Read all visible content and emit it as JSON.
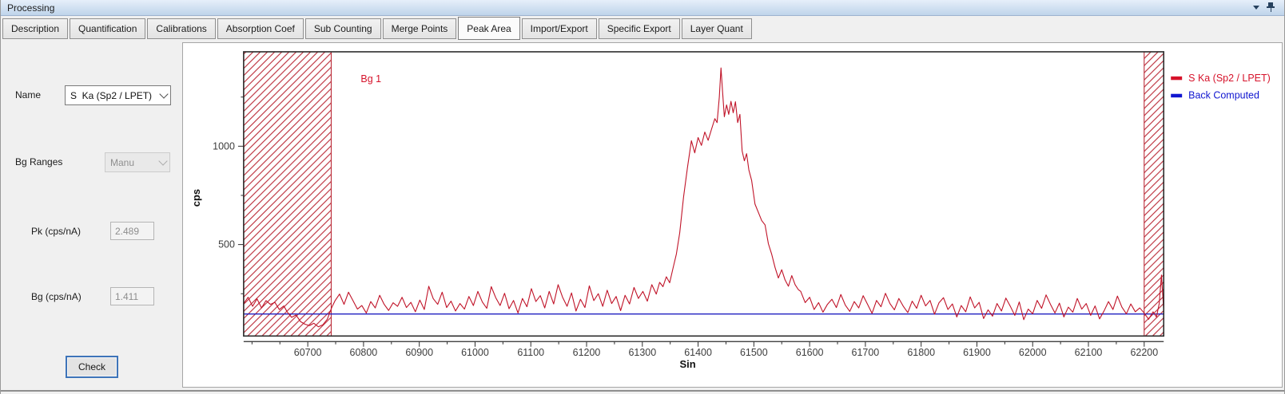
{
  "window": {
    "title": "Processing"
  },
  "titlebar_icons": {
    "menu": "chevron-down",
    "pin": "pushpin"
  },
  "tabs": {
    "items": [
      "Description",
      "Quantification",
      "Calibrations",
      "Absorption Coef",
      "Sub Counting",
      "Merge Points",
      "Peak Area",
      "Import/Export",
      "Specific Export",
      "Layer Quant"
    ],
    "active": "Peak Area"
  },
  "panel": {
    "name_label": "Name",
    "name_value": "S  Ka (Sp2 / LPET)",
    "bg_ranges_label": "Bg Ranges",
    "bg_ranges_value": "Manu",
    "pk_label": "Pk (cps/nA)",
    "pk_value": "2.489",
    "bg_label": "Bg (cps/nA)",
    "bg_value": "1.411",
    "check_label": "Check"
  },
  "colors": {
    "curve_red": "#c01328",
    "hatch_red": "#b51a28",
    "legend_red": "#d6122a",
    "curve_blue": "#2020c0",
    "legend_blue": "#1016d0",
    "axis": "#2c2c2c",
    "tick_text": "#3d3d3d"
  },
  "chart_data": {
    "type": "line",
    "title": "",
    "xlabel": "Sin",
    "ylabel": "cps",
    "xlim": [
      60585,
      62235
    ],
    "ylim": [
      35,
      1480
    ],
    "grid": false,
    "legend_position": "top-right-outside",
    "x_major_ticks": [
      60700,
      60800,
      60900,
      61000,
      61100,
      61200,
      61300,
      61400,
      61500,
      61600,
      61700,
      61800,
      61900,
      62000,
      62100,
      62200
    ],
    "x_minor_step": 50,
    "y_major_ticks": [
      500,
      1000
    ],
    "y_minor_ticks": [
      250,
      750,
      1250
    ],
    "annotations": [
      {
        "text": "Bg 1",
        "x": 60795,
        "y": 1325
      }
    ],
    "bg_regions": [
      {
        "name": "background-range-left",
        "x0": 60585,
        "x1": 60742
      },
      {
        "name": "background-range-right",
        "x0": 62200,
        "x1": 62235
      }
    ],
    "legend": [
      {
        "label": "S  Ka (Sp2 / LPET)",
        "color": "#d6122a"
      },
      {
        "label": "Back Computed",
        "color": "#1016d0"
      }
    ],
    "series": [
      {
        "name": "S  Ka (Sp2 / LPET)",
        "color": "#c01328",
        "points": [
          [
            60585,
            200
          ],
          [
            60593,
            232
          ],
          [
            60601,
            186
          ],
          [
            60609,
            224
          ],
          [
            60617,
            178
          ],
          [
            60625,
            215
          ],
          [
            60633,
            196
          ],
          [
            60641,
            206
          ],
          [
            60649,
            170
          ],
          [
            60657,
            188
          ],
          [
            60663,
            158
          ],
          [
            60671,
            130
          ],
          [
            60679,
            142
          ],
          [
            60687,
            108
          ],
          [
            60695,
            95
          ],
          [
            60703,
            88
          ],
          [
            60711,
            100
          ],
          [
            60719,
            82
          ],
          [
            60727,
            92
          ],
          [
            60735,
            120
          ],
          [
            60743,
            180
          ],
          [
            60749,
            215
          ],
          [
            60757,
            248
          ],
          [
            60765,
            196
          ],
          [
            60773,
            258
          ],
          [
            60781,
            215
          ],
          [
            60789,
            172
          ],
          [
            60797,
            190
          ],
          [
            60805,
            152
          ],
          [
            60813,
            210
          ],
          [
            60821,
            178
          ],
          [
            60829,
            242
          ],
          [
            60837,
            196
          ],
          [
            60845,
            165
          ],
          [
            60853,
            204
          ],
          [
            60861,
            186
          ],
          [
            60869,
            232
          ],
          [
            60877,
            180
          ],
          [
            60885,
            206
          ],
          [
            60893,
            158
          ],
          [
            60901,
            218
          ],
          [
            60909,
            170
          ],
          [
            60917,
            288
          ],
          [
            60925,
            225
          ],
          [
            60933,
            196
          ],
          [
            60941,
            258
          ],
          [
            60949,
            180
          ],
          [
            60957,
            212
          ],
          [
            60965,
            162
          ],
          [
            60973,
            200
          ],
          [
            60981,
            172
          ],
          [
            60989,
            236
          ],
          [
            60997,
            190
          ],
          [
            61005,
            262
          ],
          [
            61013,
            208
          ],
          [
            61021,
            176
          ],
          [
            61029,
            286
          ],
          [
            61037,
            230
          ],
          [
            61045,
            190
          ],
          [
            61053,
            252
          ],
          [
            61061,
            174
          ],
          [
            61069,
            216
          ],
          [
            61077,
            152
          ],
          [
            61085,
            226
          ],
          [
            61093,
            184
          ],
          [
            61101,
            276
          ],
          [
            61109,
            210
          ],
          [
            61117,
            240
          ],
          [
            61125,
            178
          ],
          [
            61133,
            262
          ],
          [
            61141,
            198
          ],
          [
            61149,
            296
          ],
          [
            61157,
            232
          ],
          [
            61165,
            186
          ],
          [
            61173,
            254
          ],
          [
            61181,
            162
          ],
          [
            61189,
            222
          ],
          [
            61197,
            180
          ],
          [
            61205,
            290
          ],
          [
            61213,
            215
          ],
          [
            61221,
            250
          ],
          [
            61229,
            186
          ],
          [
            61237,
            268
          ],
          [
            61245,
            200
          ],
          [
            61253,
            236
          ],
          [
            61261,
            164
          ],
          [
            61269,
            242
          ],
          [
            61277,
            198
          ],
          [
            61285,
            282
          ],
          [
            61293,
            226
          ],
          [
            61301,
            262
          ],
          [
            61309,
            212
          ],
          [
            61317,
            296
          ],
          [
            61325,
            248
          ],
          [
            61331,
            308
          ],
          [
            61337,
            286
          ],
          [
            61343,
            336
          ],
          [
            61349,
            306
          ],
          [
            61355,
            380
          ],
          [
            61361,
            452
          ],
          [
            61367,
            560
          ],
          [
            61374,
            742
          ],
          [
            61381,
            892
          ],
          [
            61388,
            1028
          ],
          [
            61394,
            966
          ],
          [
            61400,
            1044
          ],
          [
            61406,
            1004
          ],
          [
            61412,
            1072
          ],
          [
            61418,
            1030
          ],
          [
            61424,
            1086
          ],
          [
            61430,
            1140
          ],
          [
            61434,
            1120
          ],
          [
            61438,
            1250
          ],
          [
            61441,
            1398
          ],
          [
            61444,
            1270
          ],
          [
            61447,
            1150
          ],
          [
            61451,
            1210
          ],
          [
            61455,
            1162
          ],
          [
            61459,
            1228
          ],
          [
            61463,
            1170
          ],
          [
            61467,
            1226
          ],
          [
            61471,
            1120
          ],
          [
            61475,
            1162
          ],
          [
            61479,
            976
          ],
          [
            61483,
            926
          ],
          [
            61487,
            962
          ],
          [
            61491,
            880
          ],
          [
            61496,
            826
          ],
          [
            61502,
            706
          ],
          [
            61508,
            664
          ],
          [
            61514,
            622
          ],
          [
            61520,
            600
          ],
          [
            61526,
            504
          ],
          [
            61532,
            450
          ],
          [
            61538,
            384
          ],
          [
            61544,
            330
          ],
          [
            61550,
            372
          ],
          [
            61556,
            320
          ],
          [
            61562,
            288
          ],
          [
            61568,
            342
          ],
          [
            61574,
            296
          ],
          [
            61580,
            270
          ],
          [
            61584,
            262
          ],
          [
            61592,
            205
          ],
          [
            61600,
            232
          ],
          [
            61608,
            170
          ],
          [
            61616,
            205
          ],
          [
            61624,
            156
          ],
          [
            61632,
            196
          ],
          [
            61640,
            222
          ],
          [
            61648,
            180
          ],
          [
            61656,
            246
          ],
          [
            61664,
            192
          ],
          [
            61672,
            160
          ],
          [
            61680,
            210
          ],
          [
            61688,
            178
          ],
          [
            61696,
            240
          ],
          [
            61704,
            196
          ],
          [
            61712,
            150
          ],
          [
            61720,
            216
          ],
          [
            61728,
            184
          ],
          [
            61736,
            252
          ],
          [
            61744,
            200
          ],
          [
            61752,
            168
          ],
          [
            61760,
            226
          ],
          [
            61768,
            186
          ],
          [
            61776,
            154
          ],
          [
            61784,
            212
          ],
          [
            61792,
            176
          ],
          [
            61800,
            242
          ],
          [
            61808,
            188
          ],
          [
            61816,
            216
          ],
          [
            61824,
            146
          ],
          [
            61832,
            204
          ],
          [
            61840,
            230
          ],
          [
            61848,
            170
          ],
          [
            61856,
            198
          ],
          [
            61864,
            132
          ],
          [
            61872,
            190
          ],
          [
            61880,
            158
          ],
          [
            61888,
            234
          ],
          [
            61896,
            178
          ],
          [
            61904,
            206
          ],
          [
            61912,
            124
          ],
          [
            61920,
            168
          ],
          [
            61928,
            136
          ],
          [
            61936,
            200
          ],
          [
            61944,
            162
          ],
          [
            61952,
            228
          ],
          [
            61960,
            186
          ],
          [
            61968,
            140
          ],
          [
            61976,
            208
          ],
          [
            61984,
            118
          ],
          [
            61992,
            172
          ],
          [
            62000,
            148
          ],
          [
            62008,
            216
          ],
          [
            62016,
            176
          ],
          [
            62024,
            244
          ],
          [
            62032,
            196
          ],
          [
            62040,
            152
          ],
          [
            62048,
            202
          ],
          [
            62056,
            132
          ],
          [
            62064,
            182
          ],
          [
            62072,
            156
          ],
          [
            62080,
            226
          ],
          [
            62088,
            172
          ],
          [
            62096,
            200
          ],
          [
            62104,
            140
          ],
          [
            62112,
            188
          ],
          [
            62120,
            122
          ],
          [
            62128,
            162
          ],
          [
            62136,
            210
          ],
          [
            62144,
            170
          ],
          [
            62152,
            238
          ],
          [
            62160,
            182
          ],
          [
            62168,
            148
          ],
          [
            62176,
            198
          ],
          [
            62184,
            158
          ],
          [
            62192,
            178
          ],
          [
            62200,
            152
          ],
          [
            62208,
            120
          ],
          [
            62216,
            158
          ],
          [
            62222,
            132
          ],
          [
            62227,
            200
          ],
          [
            62231,
            345
          ],
          [
            62235,
            165
          ]
        ]
      },
      {
        "name": "Back Computed",
        "color": "#2020c0",
        "points": [
          [
            60585,
            147
          ],
          [
            62235,
            147
          ]
        ]
      }
    ]
  }
}
